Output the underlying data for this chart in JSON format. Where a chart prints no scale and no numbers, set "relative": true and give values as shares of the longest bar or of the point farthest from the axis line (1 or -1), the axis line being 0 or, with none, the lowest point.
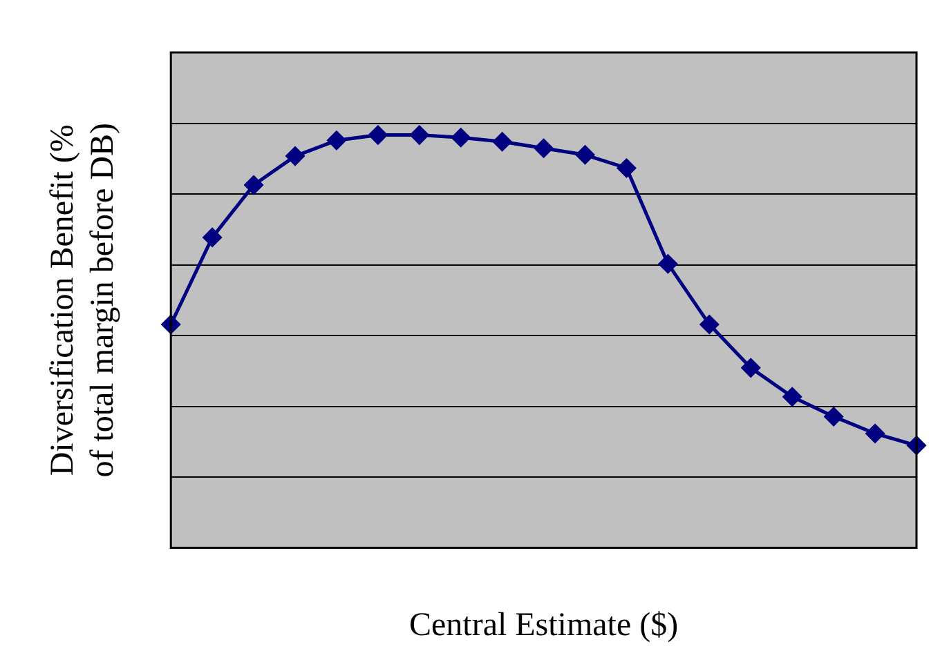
{
  "chart_data": {
    "type": "line",
    "xlabel": "Central Estimate ($)",
    "ylabel": "Diversification Benefit (% of total margin before DB)",
    "relative": true,
    "grid": "y",
    "marker": "diamond",
    "line_style": "solid",
    "categories": [
      null,
      null,
      null,
      null,
      null,
      null,
      null,
      null,
      null,
      null,
      null,
      null,
      null,
      null,
      null,
      null,
      null,
      null,
      null
    ],
    "series": [
      {
        "color": "#000080",
        "values": [
          0.541,
          0.752,
          0.879,
          0.949,
          0.987,
          1,
          1,
          0.994,
          0.984,
          0.968,
          0.952,
          0.92,
          0.688,
          0.541,
          0.436,
          0.366,
          0.318,
          0.277,
          0.248
        ]
      }
    ]
  }
}
